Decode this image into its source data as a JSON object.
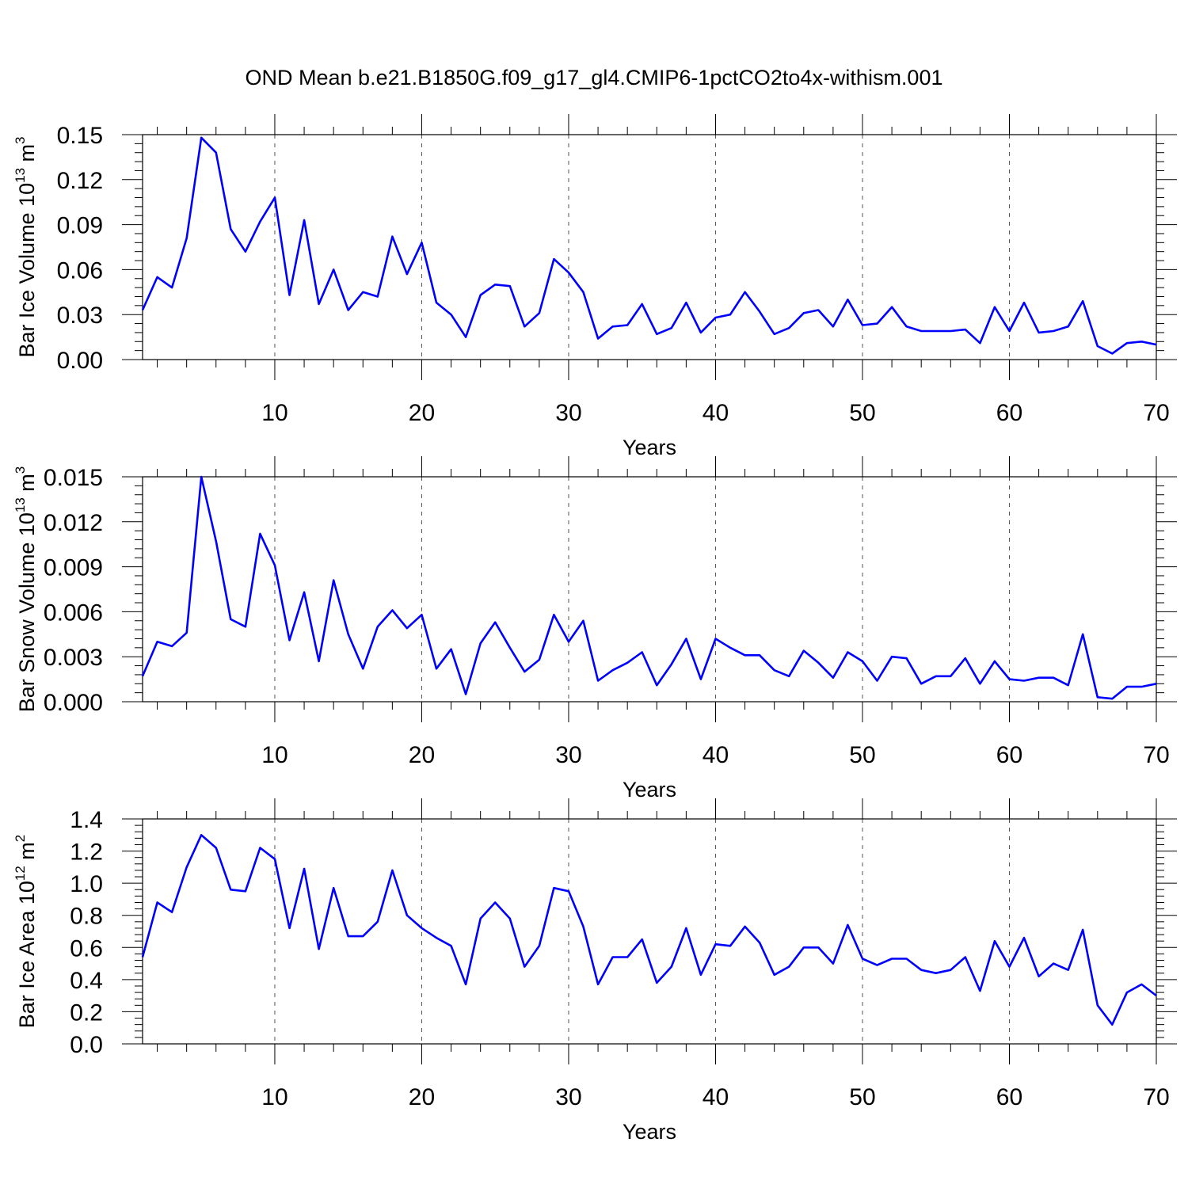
{
  "title": "OND Mean b.e21.B1850G.f09_g17_gl4.CMIP6-1pctCO2to4x-withism.001",
  "line_color": "#0000ff",
  "chart_data": [
    {
      "type": "line",
      "xlabel": "Years",
      "ylabel": "Bar Ice Volume 10",
      "ylabel_sup": "13",
      "ylabel_unit": "m",
      "ylabel_unit_sup": "3",
      "xlim": [
        1,
        70
      ],
      "ylim": [
        0,
        0.15
      ],
      "xticks": [
        10,
        20,
        30,
        40,
        50,
        60,
        70
      ],
      "yticks": [
        0.0,
        0.03,
        0.06,
        0.09,
        0.12,
        0.15
      ],
      "ytick_labels": [
        "0.00",
        "0.03",
        "0.06",
        "0.09",
        "0.12",
        "0.15"
      ],
      "x_minor_step": 2,
      "y_minor_step": 0.006,
      "grid": "dashed vertical lines at major x ticks",
      "x": [
        1,
        2,
        3,
        4,
        5,
        6,
        7,
        8,
        9,
        10,
        11,
        12,
        13,
        14,
        15,
        16,
        17,
        18,
        19,
        20,
        21,
        22,
        23,
        24,
        25,
        26,
        27,
        28,
        29,
        30,
        31,
        32,
        33,
        34,
        35,
        36,
        37,
        38,
        39,
        40,
        41,
        42,
        43,
        44,
        45,
        46,
        47,
        48,
        49,
        50,
        51,
        52,
        53,
        54,
        55,
        56,
        57,
        58,
        59,
        60,
        61,
        62,
        63,
        64,
        65,
        66,
        67,
        68,
        69,
        70
      ],
      "values": [
        0.033,
        0.055,
        0.048,
        0.081,
        0.148,
        0.138,
        0.087,
        0.072,
        0.092,
        0.108,
        0.043,
        0.093,
        0.037,
        0.06,
        0.033,
        0.045,
        0.042,
        0.082,
        0.057,
        0.078,
        0.038,
        0.03,
        0.015,
        0.043,
        0.05,
        0.049,
        0.022,
        0.031,
        0.067,
        0.058,
        0.045,
        0.014,
        0.022,
        0.023,
        0.037,
        0.017,
        0.021,
        0.038,
        0.018,
        0.028,
        0.03,
        0.045,
        0.032,
        0.017,
        0.021,
        0.031,
        0.033,
        0.022,
        0.04,
        0.023,
        0.024,
        0.035,
        0.022,
        0.019,
        0.019,
        0.019,
        0.02,
        0.011,
        0.035,
        0.019,
        0.038,
        0.018,
        0.019,
        0.022,
        0.039,
        0.009,
        0.004,
        0.011,
        0.012,
        0.01
      ]
    },
    {
      "type": "line",
      "xlabel": "Years",
      "ylabel": "Bar Snow Volume 10",
      "ylabel_sup": "13",
      "ylabel_unit": "m",
      "ylabel_unit_sup": "3",
      "xlim": [
        1,
        70
      ],
      "ylim": [
        0,
        0.015
      ],
      "xticks": [
        10,
        20,
        30,
        40,
        50,
        60,
        70
      ],
      "yticks": [
        0.0,
        0.003,
        0.006,
        0.009,
        0.012,
        0.015
      ],
      "ytick_labels": [
        "0.000",
        "0.003",
        "0.006",
        "0.009",
        "0.012",
        "0.015"
      ],
      "x_minor_step": 2,
      "y_minor_step": 0.0006,
      "grid": "dashed vertical lines at major x ticks",
      "x": [
        1,
        2,
        3,
        4,
        5,
        6,
        7,
        8,
        9,
        10,
        11,
        12,
        13,
        14,
        15,
        16,
        17,
        18,
        19,
        20,
        21,
        22,
        23,
        24,
        25,
        26,
        27,
        28,
        29,
        30,
        31,
        32,
        33,
        34,
        35,
        36,
        37,
        38,
        39,
        40,
        41,
        42,
        43,
        44,
        45,
        46,
        47,
        48,
        49,
        50,
        51,
        52,
        53,
        54,
        55,
        56,
        57,
        58,
        59,
        60,
        61,
        62,
        63,
        64,
        65,
        66,
        67,
        68,
        69,
        70
      ],
      "values": [
        0.0017,
        0.004,
        0.0037,
        0.0046,
        0.015,
        0.0107,
        0.0055,
        0.005,
        0.0112,
        0.0091,
        0.0041,
        0.0073,
        0.0027,
        0.0081,
        0.0045,
        0.0022,
        0.005,
        0.0061,
        0.0049,
        0.0058,
        0.0022,
        0.0035,
        0.0005,
        0.0039,
        0.0053,
        0.0036,
        0.002,
        0.0028,
        0.0058,
        0.004,
        0.0054,
        0.0014,
        0.0021,
        0.0026,
        0.0033,
        0.0011,
        0.0025,
        0.0042,
        0.0015,
        0.0042,
        0.0036,
        0.0031,
        0.0031,
        0.0021,
        0.0017,
        0.0034,
        0.0026,
        0.0016,
        0.0033,
        0.0027,
        0.0014,
        0.003,
        0.0029,
        0.0012,
        0.0017,
        0.0017,
        0.0029,
        0.0012,
        0.0027,
        0.0015,
        0.0014,
        0.0016,
        0.0016,
        0.0011,
        0.0045,
        0.0003,
        0.0002,
        0.001,
        0.001,
        0.0012
      ]
    },
    {
      "type": "line",
      "xlabel": "Years",
      "ylabel": "Bar Ice Area 10",
      "ylabel_sup": "12",
      "ylabel_unit": "m",
      "ylabel_unit_sup": "2",
      "xlim": [
        1,
        70
      ],
      "ylim": [
        0,
        1.4
      ],
      "xticks": [
        10,
        20,
        30,
        40,
        50,
        60,
        70
      ],
      "yticks": [
        0.0,
        0.2,
        0.4,
        0.6,
        0.8,
        1.0,
        1.2,
        1.4
      ],
      "ytick_labels": [
        "0.0",
        "0.2",
        "0.4",
        "0.6",
        "0.8",
        "1.0",
        "1.2",
        "1.4"
      ],
      "x_minor_step": 2,
      "y_minor_step": 0.04,
      "grid": "dashed vertical lines at major x ticks",
      "x": [
        1,
        2,
        3,
        4,
        5,
        6,
        7,
        8,
        9,
        10,
        11,
        12,
        13,
        14,
        15,
        16,
        17,
        18,
        19,
        20,
        21,
        22,
        23,
        24,
        25,
        26,
        27,
        28,
        29,
        30,
        31,
        32,
        33,
        34,
        35,
        36,
        37,
        38,
        39,
        40,
        41,
        42,
        43,
        44,
        45,
        46,
        47,
        48,
        49,
        50,
        51,
        52,
        53,
        54,
        55,
        56,
        57,
        58,
        59,
        60,
        61,
        62,
        63,
        64,
        65,
        66,
        67,
        68,
        69,
        70
      ],
      "values": [
        0.54,
        0.88,
        0.82,
        1.1,
        1.3,
        1.22,
        0.96,
        0.95,
        1.22,
        1.15,
        0.72,
        1.09,
        0.59,
        0.97,
        0.67,
        0.67,
        0.76,
        1.08,
        0.8,
        0.72,
        0.66,
        0.61,
        0.37,
        0.78,
        0.88,
        0.78,
        0.48,
        0.61,
        0.97,
        0.95,
        0.73,
        0.37,
        0.54,
        0.54,
        0.65,
        0.38,
        0.48,
        0.72,
        0.43,
        0.62,
        0.61,
        0.73,
        0.63,
        0.43,
        0.48,
        0.6,
        0.6,
        0.5,
        0.74,
        0.53,
        0.49,
        0.53,
        0.53,
        0.46,
        0.44,
        0.46,
        0.54,
        0.33,
        0.64,
        0.48,
        0.66,
        0.42,
        0.5,
        0.46,
        0.71,
        0.24,
        0.12,
        0.32,
        0.37,
        0.3
      ]
    }
  ]
}
